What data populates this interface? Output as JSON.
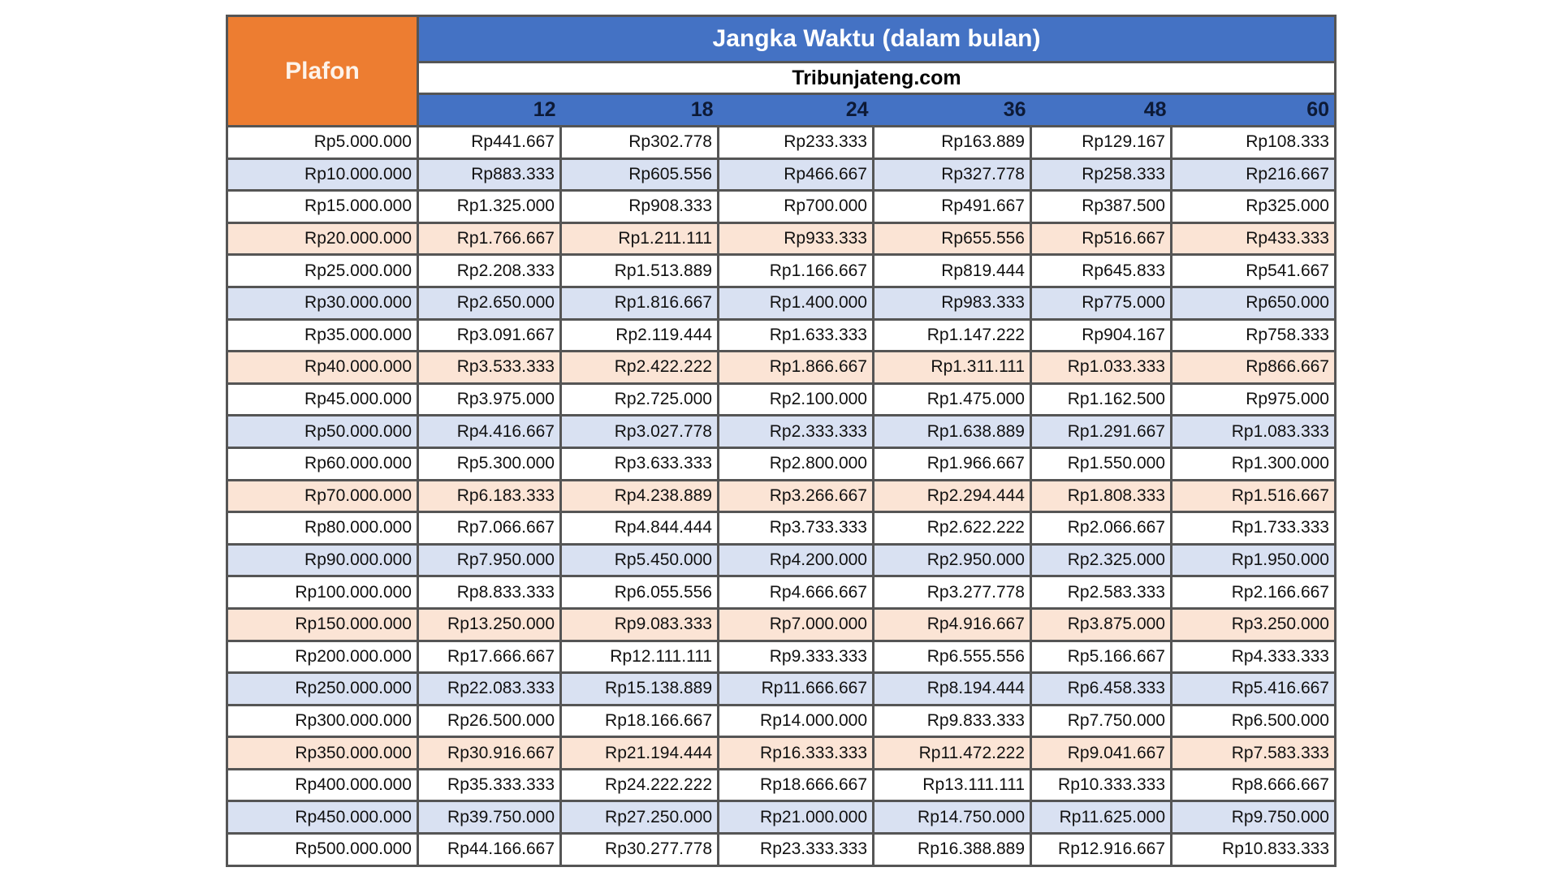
{
  "header": {
    "plafon_label": "Plafon",
    "title": "Jangka Waktu (dalam bulan)",
    "source": "Tribunjateng.com",
    "terms": [
      "12",
      "18",
      "24",
      "36",
      "48",
      "60"
    ]
  },
  "colors": {
    "plafon_header": "#ED7D31",
    "header_blue": "#4472C4",
    "row_blue": "#D9E1F2",
    "row_peach": "#FBE4D5",
    "border": "#555555"
  },
  "rows": [
    [
      "Rp5.000.000",
      "Rp441.667",
      "Rp302.778",
      "Rp233.333",
      "Rp163.889",
      "Rp129.167",
      "Rp108.333"
    ],
    [
      "Rp10.000.000",
      "Rp883.333",
      "Rp605.556",
      "Rp466.667",
      "Rp327.778",
      "Rp258.333",
      "Rp216.667"
    ],
    [
      "Rp15.000.000",
      "Rp1.325.000",
      "Rp908.333",
      "Rp700.000",
      "Rp491.667",
      "Rp387.500",
      "Rp325.000"
    ],
    [
      "Rp20.000.000",
      "Rp1.766.667",
      "Rp1.211.111",
      "Rp933.333",
      "Rp655.556",
      "Rp516.667",
      "Rp433.333"
    ],
    [
      "Rp25.000.000",
      "Rp2.208.333",
      "Rp1.513.889",
      "Rp1.166.667",
      "Rp819.444",
      "Rp645.833",
      "Rp541.667"
    ],
    [
      "Rp30.000.000",
      "Rp2.650.000",
      "Rp1.816.667",
      "Rp1.400.000",
      "Rp983.333",
      "Rp775.000",
      "Rp650.000"
    ],
    [
      "Rp35.000.000",
      "Rp3.091.667",
      "Rp2.119.444",
      "Rp1.633.333",
      "Rp1.147.222",
      "Rp904.167",
      "Rp758.333"
    ],
    [
      "Rp40.000.000",
      "Rp3.533.333",
      "Rp2.422.222",
      "Rp1.866.667",
      "Rp1.311.111",
      "Rp1.033.333",
      "Rp866.667"
    ],
    [
      "Rp45.000.000",
      "Rp3.975.000",
      "Rp2.725.000",
      "Rp2.100.000",
      "Rp1.475.000",
      "Rp1.162.500",
      "Rp975.000"
    ],
    [
      "Rp50.000.000",
      "Rp4.416.667",
      "Rp3.027.778",
      "Rp2.333.333",
      "Rp1.638.889",
      "Rp1.291.667",
      "Rp1.083.333"
    ],
    [
      "Rp60.000.000",
      "Rp5.300.000",
      "Rp3.633.333",
      "Rp2.800.000",
      "Rp1.966.667",
      "Rp1.550.000",
      "Rp1.300.000"
    ],
    [
      "Rp70.000.000",
      "Rp6.183.333",
      "Rp4.238.889",
      "Rp3.266.667",
      "Rp2.294.444",
      "Rp1.808.333",
      "Rp1.516.667"
    ],
    [
      "Rp80.000.000",
      "Rp7.066.667",
      "Rp4.844.444",
      "Rp3.733.333",
      "Rp2.622.222",
      "Rp2.066.667",
      "Rp1.733.333"
    ],
    [
      "Rp90.000.000",
      "Rp7.950.000",
      "Rp5.450.000",
      "Rp4.200.000",
      "Rp2.950.000",
      "Rp2.325.000",
      "Rp1.950.000"
    ],
    [
      "Rp100.000.000",
      "Rp8.833.333",
      "Rp6.055.556",
      "Rp4.666.667",
      "Rp3.277.778",
      "Rp2.583.333",
      "Rp2.166.667"
    ],
    [
      "Rp150.000.000",
      "Rp13.250.000",
      "Rp9.083.333",
      "Rp7.000.000",
      "Rp4.916.667",
      "Rp3.875.000",
      "Rp3.250.000"
    ],
    [
      "Rp200.000.000",
      "Rp17.666.667",
      "Rp12.111.111",
      "Rp9.333.333",
      "Rp6.555.556",
      "Rp5.166.667",
      "Rp4.333.333"
    ],
    [
      "Rp250.000.000",
      "Rp22.083.333",
      "Rp15.138.889",
      "Rp11.666.667",
      "Rp8.194.444",
      "Rp6.458.333",
      "Rp5.416.667"
    ],
    [
      "Rp300.000.000",
      "Rp26.500.000",
      "Rp18.166.667",
      "Rp14.000.000",
      "Rp9.833.333",
      "Rp7.750.000",
      "Rp6.500.000"
    ],
    [
      "Rp350.000.000",
      "Rp30.916.667",
      "Rp21.194.444",
      "Rp16.333.333",
      "Rp11.472.222",
      "Rp9.041.667",
      "Rp7.583.333"
    ],
    [
      "Rp400.000.000",
      "Rp35.333.333",
      "Rp24.222.222",
      "Rp18.666.667",
      "Rp13.111.111",
      "Rp10.333.333",
      "Rp8.666.667"
    ],
    [
      "Rp450.000.000",
      "Rp39.750.000",
      "Rp27.250.000",
      "Rp21.000.000",
      "Rp14.750.000",
      "Rp11.625.000",
      "Rp9.750.000"
    ],
    [
      "Rp500.000.000",
      "Rp44.166.667",
      "Rp30.277.778",
      "Rp23.333.333",
      "Rp16.388.889",
      "Rp12.916.667",
      "Rp10.833.333"
    ]
  ]
}
